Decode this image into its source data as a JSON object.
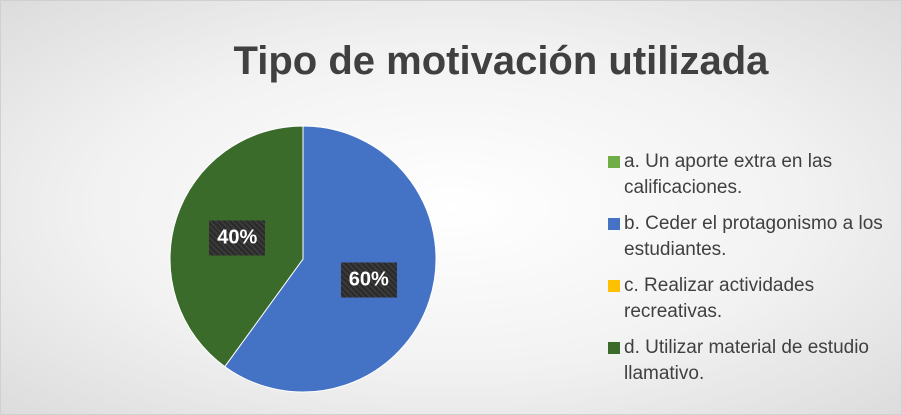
{
  "chart_data": {
    "type": "pie",
    "title": "Tipo de motivación utilizada",
    "categories": [
      "a. Un aporte extra en las calificaciones.",
      "b. Ceder el protagonismo a los estudiantes.",
      "c. Realizar actividades recreativas.",
      "d. Utilizar material de estudio llamativo."
    ],
    "values": [
      0,
      60,
      0,
      40
    ],
    "value_labels": [
      null,
      "60%",
      null,
      "40%"
    ],
    "colors": [
      "#70ad47",
      "#4472c4",
      "#ffc000",
      "#3b6b2a"
    ],
    "legend": "right"
  }
}
